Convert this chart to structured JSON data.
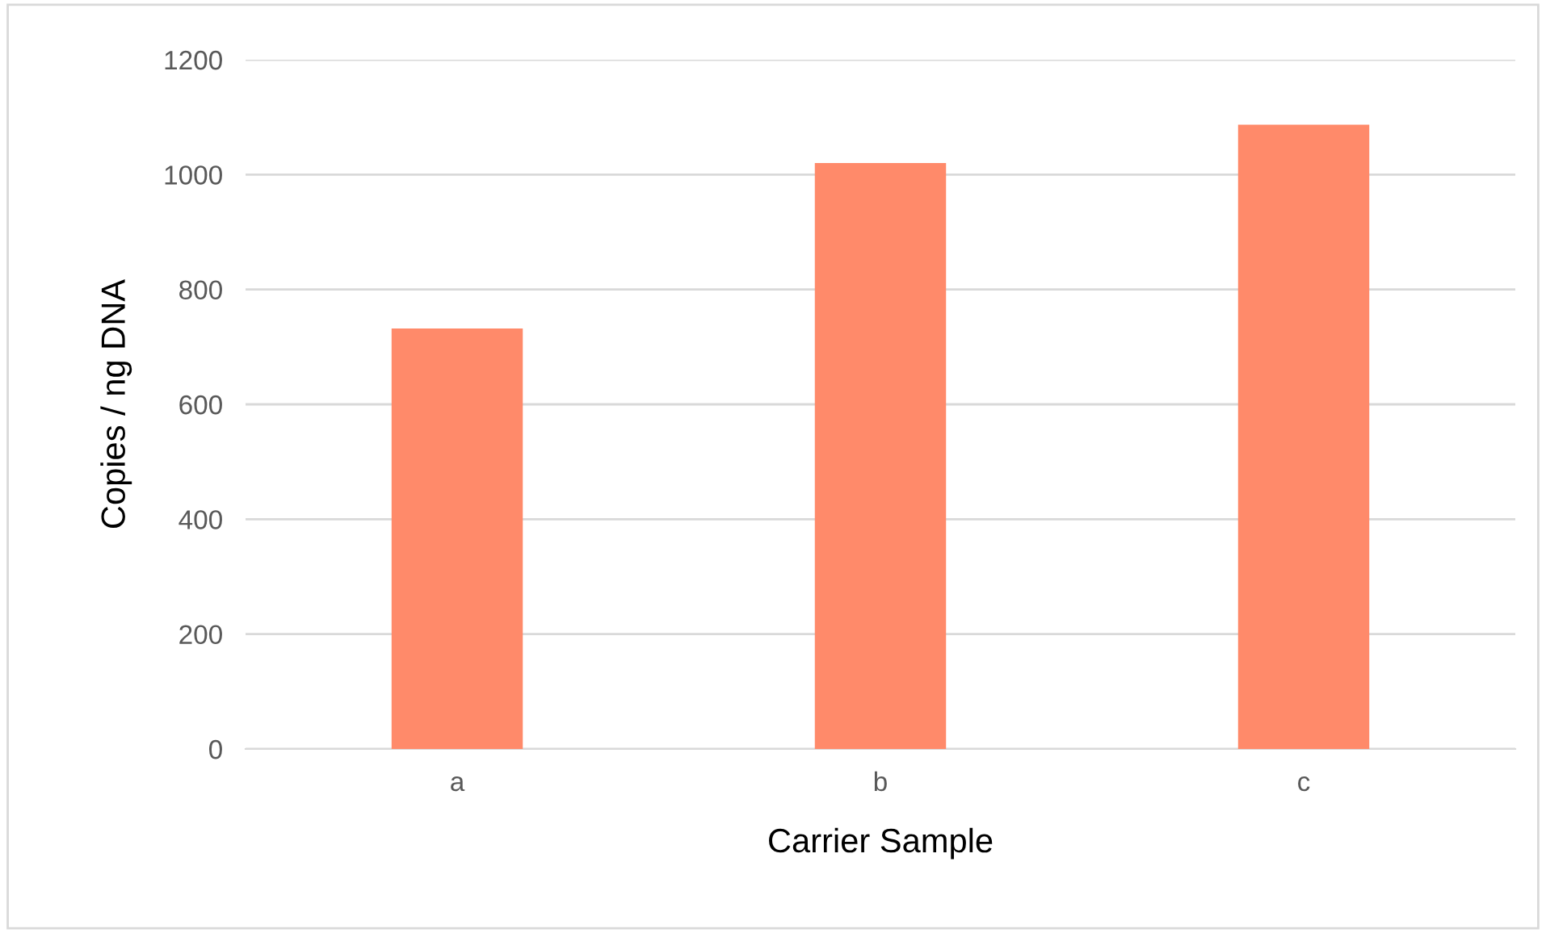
{
  "chart_data": {
    "type": "bar",
    "xlabel": "Carrier Sample",
    "ylabel": "Copies / ng DNA",
    "categories": [
      "a",
      "b",
      "c"
    ],
    "values": [
      732,
      1020,
      1087
    ],
    "color": "#ff8a6a",
    "ylim": [
      0,
      1200
    ],
    "yticks": [
      0,
      200,
      400,
      600,
      800,
      1000,
      1200
    ],
    "grid": "y"
  }
}
